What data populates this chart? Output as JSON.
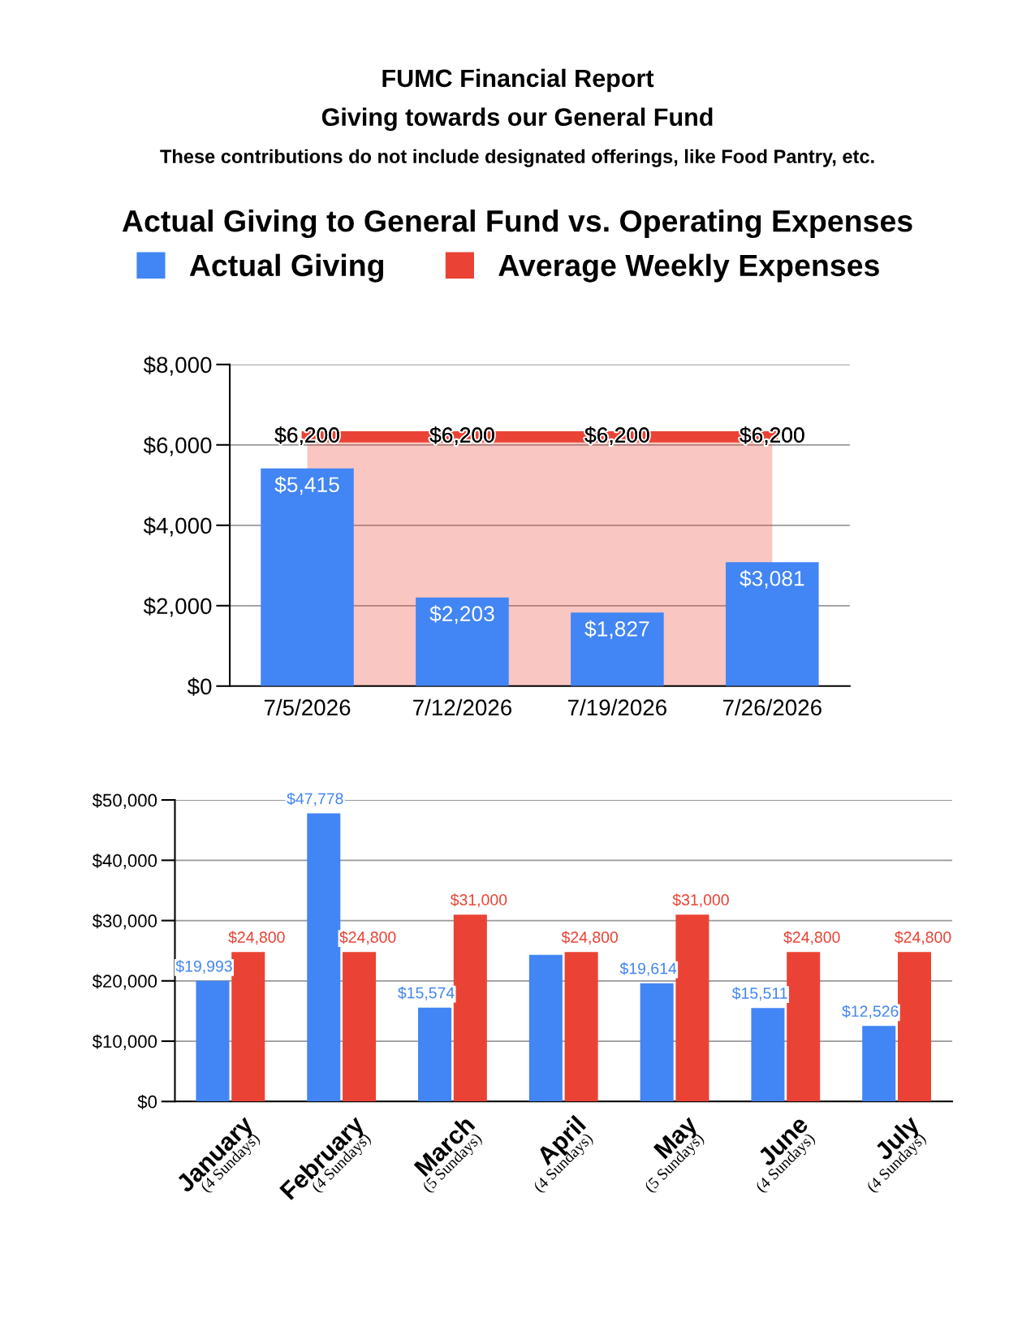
{
  "chart_data": [
    {
      "type": "bar",
      "title": "Actual Giving to General Fund vs. Operating Expenses",
      "annotations": [
        "FUMC Financial Report",
        "Giving towards our General Fund",
        "These contributions do not include designated offerings, like Food Pantry, etc."
      ],
      "categories": [
        "7/5/2026",
        "7/12/2026",
        "7/19/2026",
        "7/26/2026"
      ],
      "series": [
        {
          "name": "Actual Giving",
          "type": "bar",
          "color": "#4285f4",
          "values": [
            5415,
            2203,
            1827,
            3081
          ],
          "value_labels": [
            "$5,415",
            "$2,203",
            "$1,827",
            "$3,081"
          ]
        },
        {
          "name": "Average Weekly Expenses",
          "type": "area",
          "color": "#ea4335",
          "values": [
            6200,
            6200,
            6200,
            6200
          ],
          "value_labels": [
            "$6,200",
            "$6,200",
            "$6,200",
            "$6,200"
          ]
        }
      ],
      "ylim": [
        0,
        8000
      ],
      "yticks": [
        {
          "value": 0,
          "label": "$0"
        },
        {
          "value": 2000,
          "label": "$2,000"
        },
        {
          "value": 4000,
          "label": "$4,000"
        },
        {
          "value": 6000,
          "label": "$6,000"
        },
        {
          "value": 8000,
          "label": "$8,000"
        }
      ],
      "grid": "y",
      "legend": "top"
    },
    {
      "type": "bar",
      "categories": [
        "January\n(4 Sundays)",
        "February\n(4 Sundays)",
        "March\n(5 Sundays)",
        "April\n(4 Sundays)",
        "May\n(5 Sundays)",
        "June\n(4 Sundays)",
        "July\n(4 Sundays)"
      ],
      "series": [
        {
          "color": "#4285f4",
          "values": [
            19993,
            47778,
            15574,
            24300,
            19614,
            15511,
            12526
          ],
          "value_labels": [
            "$19,993",
            "$47,778",
            "$15,574",
            null,
            "$19,614",
            "$15,511",
            "$12,526"
          ]
        },
        {
          "color": "#ea4335",
          "values": [
            24800,
            24800,
            31000,
            24800,
            31000,
            24800,
            24800
          ],
          "value_labels": [
            "$24,800",
            "$24,800",
            "$31,000",
            "$24,800",
            "$31,000",
            "$24,800",
            "$24,800"
          ]
        }
      ],
      "ylim": [
        0,
        50000
      ],
      "yticks": [
        {
          "value": 0,
          "label": "$0"
        },
        {
          "value": 10000,
          "label": "$10,000"
        },
        {
          "value": 20000,
          "label": "$20,000"
        },
        {
          "value": 30000,
          "label": "$30,000"
        },
        {
          "value": 40000,
          "label": "$40,000"
        },
        {
          "value": 50000,
          "label": "$50,000"
        }
      ],
      "grid": "y",
      "legend": false
    }
  ]
}
